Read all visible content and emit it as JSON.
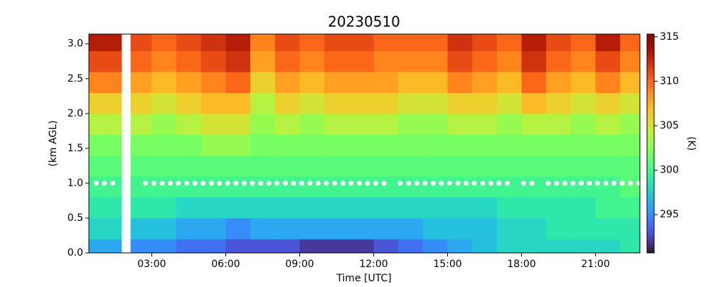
{
  "chart_data": {
    "type": "heatmap",
    "title": "20230510",
    "xlabel": "Time [UTC]",
    "ylabel": "(km AGL)",
    "colorbar_label": "(K)",
    "x": [
      0.45,
      1.77,
      2.14,
      3,
      4,
      5,
      6,
      7,
      8,
      9,
      10,
      11,
      12,
      13,
      14,
      15,
      16,
      17,
      18,
      19,
      20,
      21,
      22,
      22.8
    ],
    "y": [
      0,
      0.2,
      0.5,
      0.8,
      1.1,
      1.4,
      1.7,
      2.0,
      2.3,
      2.6,
      2.9,
      3.14
    ],
    "values": [
      [
        296,
        298,
        299,
        300,
        301,
        302,
        304,
        306,
        309,
        311,
        313
      ],
      [
        null,
        null,
        null,
        null,
        null,
        null,
        null,
        null,
        null,
        null,
        null
      ],
      [
        295,
        297,
        299,
        300,
        301,
        302,
        304,
        306,
        308,
        310,
        311
      ],
      [
        295,
        297,
        299,
        300,
        301,
        302,
        303,
        305,
        307,
        309,
        310
      ],
      [
        294,
        296,
        298,
        300,
        301,
        302,
        304,
        306,
        308,
        310,
        311
      ],
      [
        294,
        296,
        298,
        300,
        301,
        303,
        305,
        307,
        309,
        311,
        312
      ],
      [
        293,
        295,
        298,
        300,
        301,
        303,
        305,
        307,
        310,
        312,
        313
      ],
      [
        293,
        296,
        298,
        300,
        301,
        302,
        303,
        304,
        306,
        308,
        309
      ],
      [
        293,
        296,
        298,
        300,
        301,
        302,
        304,
        306,
        308,
        310,
        311
      ],
      [
        292,
        296,
        298,
        300,
        301,
        302,
        303,
        305,
        307,
        309,
        310
      ],
      [
        292,
        296,
        298,
        300,
        301,
        302,
        304,
        306,
        308,
        310,
        311
      ],
      [
        292,
        296,
        298,
        300,
        301,
        302,
        304,
        306,
        308,
        310,
        311
      ],
      [
        293,
        296,
        298,
        300,
        301,
        302,
        304,
        306,
        308,
        309,
        310
      ],
      [
        294,
        296,
        298,
        300,
        301,
        302,
        303,
        305,
        307,
        309,
        310
      ],
      [
        295,
        297,
        298,
        300,
        301,
        302,
        303,
        305,
        307,
        309,
        310
      ],
      [
        296,
        297,
        298,
        300,
        301,
        302,
        304,
        306,
        309,
        311,
        312
      ],
      [
        297,
        297,
        298,
        300,
        301,
        302,
        304,
        306,
        308,
        310,
        311
      ],
      [
        298,
        298,
        299,
        300,
        301,
        302,
        303,
        305,
        307,
        309,
        310
      ],
      [
        298,
        298,
        299,
        300,
        301,
        302,
        304,
        307,
        310,
        312,
        313
      ],
      [
        298,
        299,
        299,
        300,
        301,
        302,
        304,
        306,
        308,
        310,
        311
      ],
      [
        298,
        299,
        299,
        300,
        301,
        302,
        303,
        305,
        307,
        309,
        310
      ],
      [
        298,
        299,
        300,
        300,
        301,
        302,
        304,
        306,
        309,
        311,
        313
      ],
      [
        299,
        299,
        300,
        301,
        301,
        302,
        303,
        305,
        307,
        309,
        310
      ]
    ],
    "markers": {
      "height": 1.0,
      "x": [
        0.75,
        1.08,
        1.42,
        2.75,
        3.08,
        3.42,
        3.75,
        4.08,
        4.42,
        4.75,
        5.08,
        5.42,
        5.75,
        6.08,
        6.42,
        6.75,
        7.08,
        7.42,
        7.75,
        8.08,
        8.42,
        8.75,
        9.08,
        9.42,
        9.75,
        10.08,
        10.42,
        10.75,
        11.08,
        11.42,
        11.75,
        12.08,
        12.42,
        13.08,
        13.42,
        13.75,
        14.08,
        14.42,
        14.75,
        15.08,
        15.42,
        15.75,
        16.08,
        16.42,
        16.75,
        17.08,
        17.42,
        18.08,
        18.42,
        19.08,
        19.42,
        19.75,
        20.08,
        20.42,
        20.75,
        21.08,
        21.42,
        21.75,
        22.08,
        22.42,
        22.75
      ]
    },
    "xlim": [
      0.45,
      22.8
    ],
    "ylim": [
      0,
      3.14
    ],
    "xticks": [
      {
        "value": 3,
        "label": "03:00"
      },
      {
        "value": 6,
        "label": "06:00"
      },
      {
        "value": 9,
        "label": "09:00"
      },
      {
        "value": 12,
        "label": "12:00"
      },
      {
        "value": 15,
        "label": "15:00"
      },
      {
        "value": 18,
        "label": "18:00"
      },
      {
        "value": 21,
        "label": "21:00"
      }
    ],
    "yticks": [
      {
        "value": 0,
        "label": "0.0"
      },
      0.5,
      {
        "value": 1,
        "label": "1.0"
      },
      1.5,
      {
        "value": 2,
        "label": "2.0"
      },
      2.5,
      {
        "value": 3,
        "label": "3.0"
      }
    ],
    "clim": [
      290.7,
      315.3
    ],
    "cticks": [
      295,
      300,
      305,
      310,
      315
    ],
    "colormap": "turbo"
  }
}
